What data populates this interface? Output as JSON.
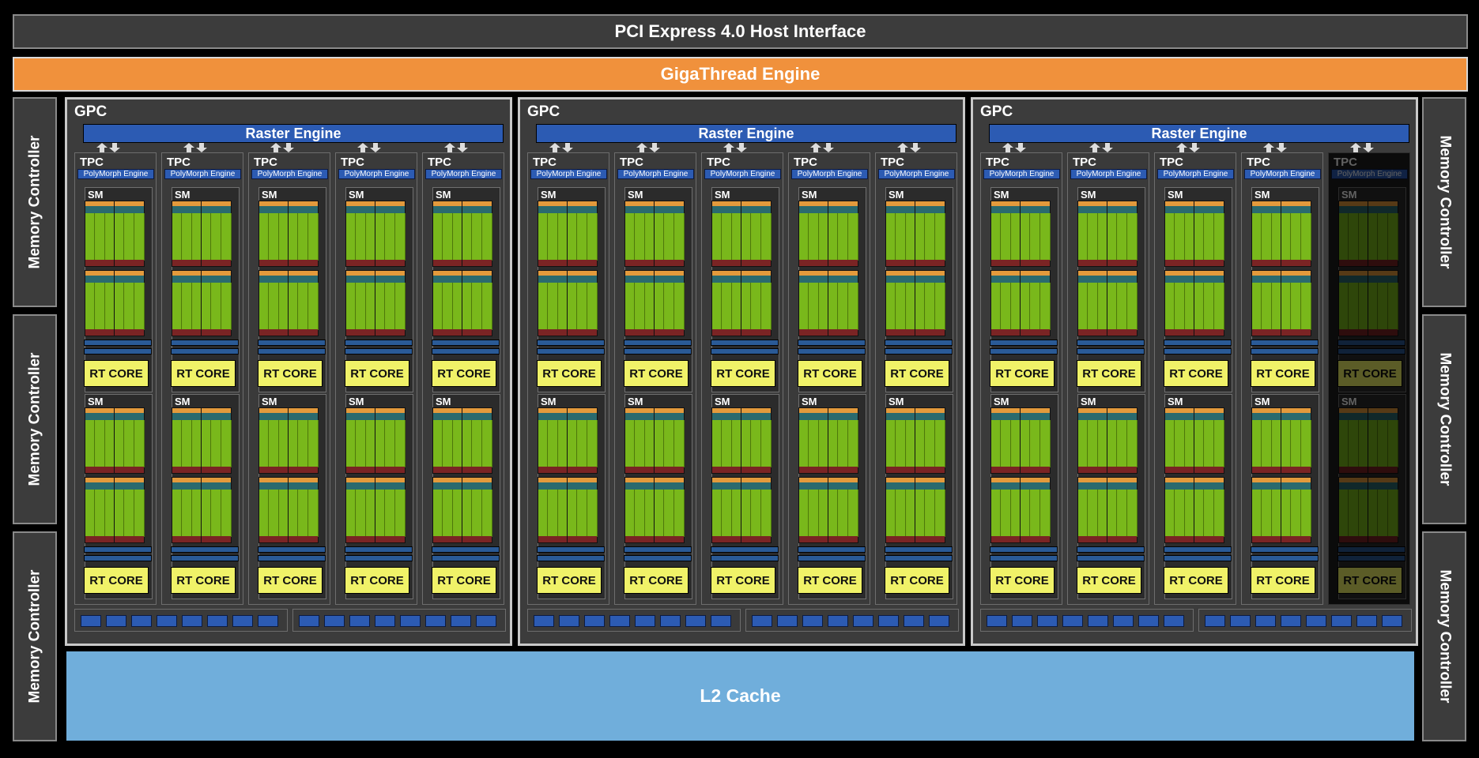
{
  "header": {
    "pcie_label": "PCI Express 4.0 Host Interface",
    "gigathread_label": "GigaThread Engine"
  },
  "memory_controller_label": "Memory Controller",
  "gpc_label": "GPC",
  "raster_label": "Raster Engine",
  "tpc_label": "TPC",
  "polymorph_label": "PolyMorph Engine",
  "sm_label": "SM",
  "rt_label": "RT CORE",
  "l2_label": "L2 Cache",
  "colors": {
    "background": "#000000",
    "panel": "#3c3c3c",
    "gigathread": "#f0913c",
    "raster": "#2c5bb3",
    "cuda_core": "#7bb31a",
    "rt_core": "#f0f268",
    "l2_cache": "#70aedb"
  },
  "gpcs": [
    {
      "tpcs": [
        {
          "enabled": true
        },
        {
          "enabled": true
        },
        {
          "enabled": true
        },
        {
          "enabled": true
        },
        {
          "enabled": true
        }
      ]
    },
    {
      "tpcs": [
        {
          "enabled": true
        },
        {
          "enabled": true
        },
        {
          "enabled": true
        },
        {
          "enabled": true
        },
        {
          "enabled": true
        }
      ]
    },
    {
      "tpcs": [
        {
          "enabled": true
        },
        {
          "enabled": true
        },
        {
          "enabled": true
        },
        {
          "enabled": true
        },
        {
          "enabled": false
        }
      ]
    }
  ],
  "memory_controllers": {
    "left": 3,
    "right": 3
  },
  "sm_per_tpc": 2,
  "cache_blocks_per_group": 8
}
